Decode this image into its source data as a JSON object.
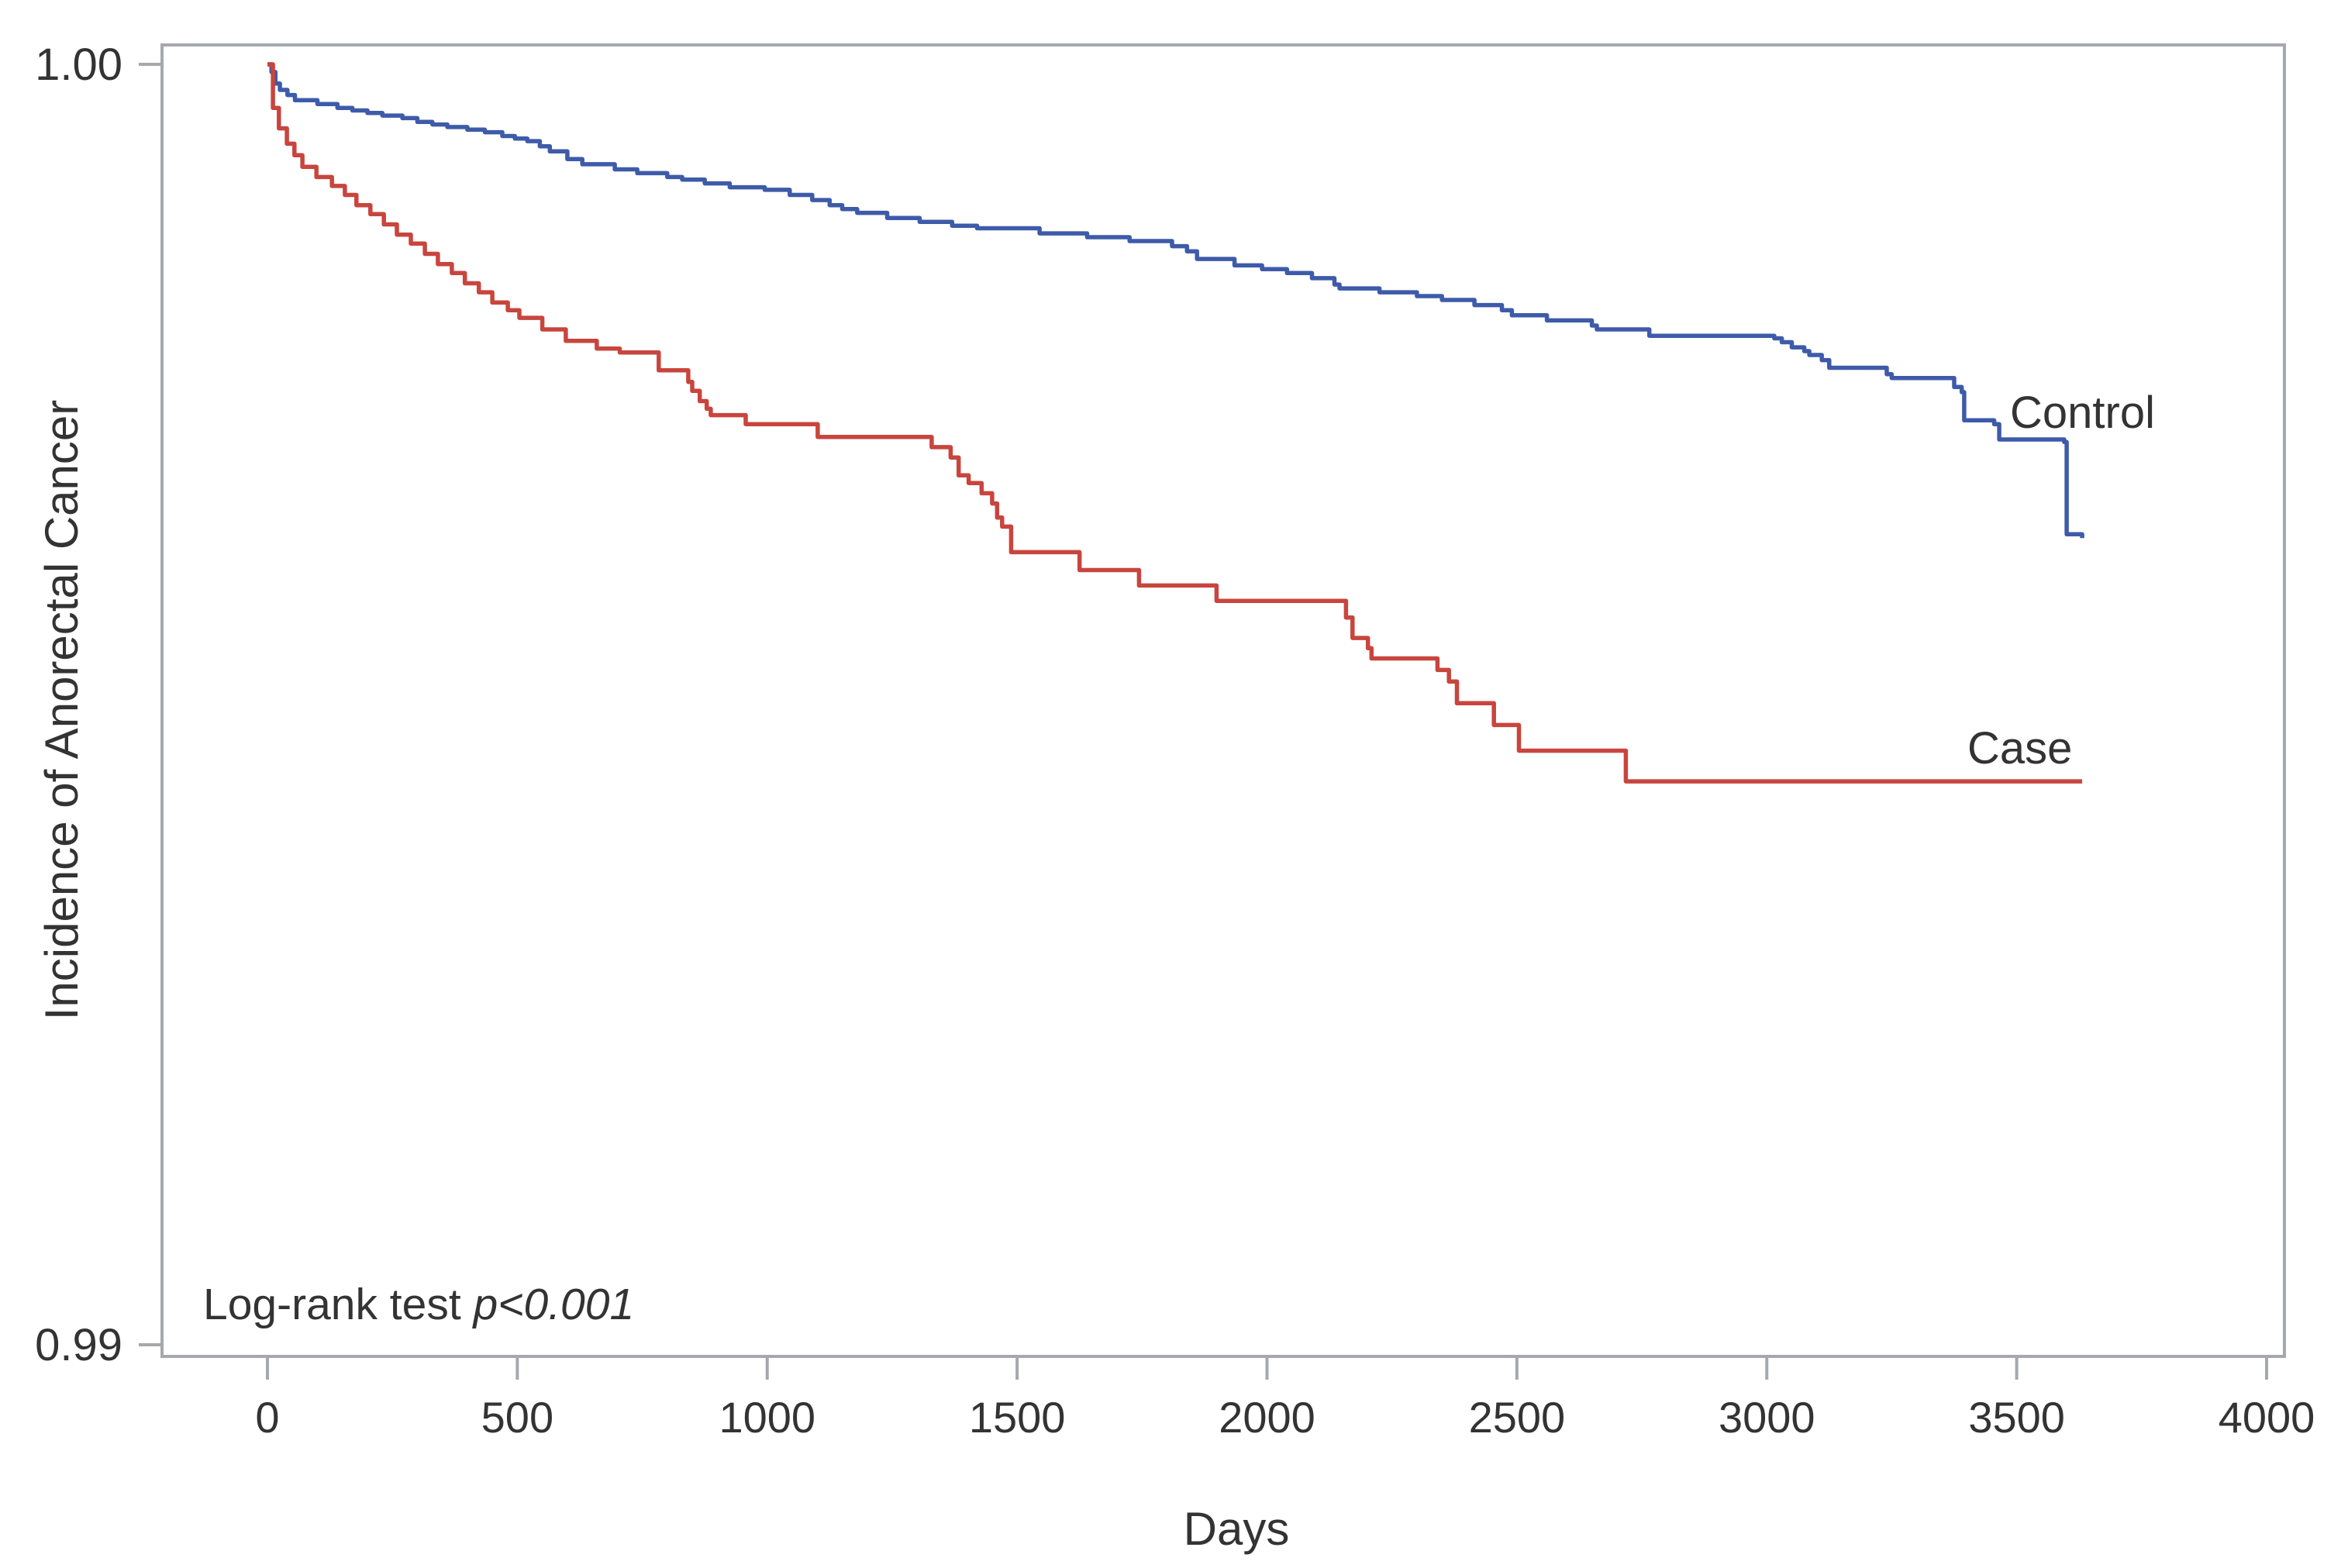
{
  "figure": {
    "background_color": "#ffffff",
    "frame_color": "#a5a8ac",
    "text_color": "#333333"
  },
  "chart_data": {
    "type": "line",
    "subtype": "kaplan-meier-step",
    "title": "",
    "xlabel": "Days",
    "ylabel": "Incidence of Anorectal Cancer",
    "xlim": [
      0,
      4000
    ],
    "ylim": [
      0.99,
      1.0
    ],
    "grid": false,
    "legend_position": "curve-end-labels",
    "x_ticks": [
      {
        "value": 0,
        "label": "0"
      },
      {
        "value": 500,
        "label": "500"
      },
      {
        "value": 1000,
        "label": "1000"
      },
      {
        "value": 1500,
        "label": "1500"
      },
      {
        "value": 2000,
        "label": "2000"
      },
      {
        "value": 2500,
        "label": "2500"
      },
      {
        "value": 3000,
        "label": "3000"
      },
      {
        "value": 3500,
        "label": "3500"
      },
      {
        "value": 4000,
        "label": "4000"
      }
    ],
    "y_ticks": [
      {
        "value": 1.0,
        "label": "1.00"
      },
      {
        "value": 0.99,
        "label": "0.99"
      }
    ],
    "annotation": {
      "prefix": "Log-rank test ",
      "p_value": "p<0.001"
    },
    "series": [
      {
        "name": "Control",
        "label_text": "Control",
        "color": "#3e5ba9",
        "points": [
          [
            0,
            1.0
          ],
          [
            8,
            0.99994
          ],
          [
            16,
            0.99985
          ],
          [
            25,
            0.9998
          ],
          [
            40,
            0.99976
          ],
          [
            55,
            0.99972
          ],
          [
            100,
            0.99969
          ],
          [
            140,
            0.99966
          ],
          [
            170,
            0.99964
          ],
          [
            200,
            0.99962
          ],
          [
            230,
            0.9996
          ],
          [
            270,
            0.99958
          ],
          [
            300,
            0.99955
          ],
          [
            330,
            0.99953
          ],
          [
            360,
            0.99951
          ],
          [
            400,
            0.99949
          ],
          [
            435,
            0.99947
          ],
          [
            470,
            0.99944
          ],
          [
            495,
            0.99942
          ],
          [
            520,
            0.9994
          ],
          [
            545,
            0.99936
          ],
          [
            565,
            0.99932
          ],
          [
            600,
            0.99926
          ],
          [
            630,
            0.99922
          ],
          [
            695,
            0.99918
          ],
          [
            740,
            0.99915
          ],
          [
            800,
            0.99912
          ],
          [
            830,
            0.9991
          ],
          [
            875,
            0.99907
          ],
          [
            925,
            0.99904
          ],
          [
            995,
            0.99902
          ],
          [
            1045,
            0.99898
          ],
          [
            1090,
            0.99894
          ],
          [
            1125,
            0.9989
          ],
          [
            1150,
            0.99887
          ],
          [
            1180,
            0.99884
          ],
          [
            1240,
            0.9988
          ],
          [
            1305,
            0.99877
          ],
          [
            1370,
            0.99874
          ],
          [
            1420,
            0.99872
          ],
          [
            1545,
            0.99868
          ],
          [
            1640,
            0.99865
          ],
          [
            1725,
            0.99862
          ],
          [
            1810,
            0.99858
          ],
          [
            1840,
            0.99854
          ],
          [
            1860,
            0.99848
          ],
          [
            1935,
            0.99843
          ],
          [
            1990,
            0.9984
          ],
          [
            2040,
            0.99837
          ],
          [
            2090,
            0.99833
          ],
          [
            2135,
            0.99828
          ],
          [
            2145,
            0.99825
          ],
          [
            2225,
            0.99822
          ],
          [
            2300,
            0.99819
          ],
          [
            2350,
            0.99816
          ],
          [
            2415,
            0.99812
          ],
          [
            2470,
            0.99808
          ],
          [
            2490,
            0.99804
          ],
          [
            2560,
            0.998
          ],
          [
            2650,
            0.99796
          ],
          [
            2660,
            0.99793
          ],
          [
            2765,
            0.99788
          ],
          [
            3015,
            0.99786
          ],
          [
            3030,
            0.99783
          ],
          [
            3050,
            0.99779
          ],
          [
            3075,
            0.99776
          ],
          [
            3085,
            0.99773
          ],
          [
            3110,
            0.99769
          ],
          [
            3125,
            0.99763
          ],
          [
            3240,
            0.99758
          ],
          [
            3250,
            0.99755
          ],
          [
            3375,
            0.99748
          ],
          [
            3390,
            0.99744
          ],
          [
            3395,
            0.99722
          ],
          [
            3455,
            0.99719
          ],
          [
            3465,
            0.99707
          ],
          [
            3595,
            0.99705
          ],
          [
            3600,
            0.99633
          ],
          [
            3631,
            0.9963
          ]
        ]
      },
      {
        "name": "Case",
        "label_text": "Case",
        "color": "#c8453e",
        "points": [
          [
            0,
            1.0
          ],
          [
            11,
            0.99966
          ],
          [
            23,
            0.9995
          ],
          [
            39,
            0.99938
          ],
          [
            54,
            0.99929
          ],
          [
            70,
            0.9992
          ],
          [
            98,
            0.99912
          ],
          [
            129,
            0.99905
          ],
          [
            155,
            0.99898
          ],
          [
            178,
            0.9989
          ],
          [
            206,
            0.99883
          ],
          [
            233,
            0.99875
          ],
          [
            259,
            0.99867
          ],
          [
            287,
            0.9986
          ],
          [
            315,
            0.99852
          ],
          [
            341,
            0.99844
          ],
          [
            369,
            0.99837
          ],
          [
            395,
            0.99829
          ],
          [
            423,
            0.99822
          ],
          [
            450,
            0.99814
          ],
          [
            481,
            0.99808
          ],
          [
            504,
            0.99802
          ],
          [
            550,
            0.99793
          ],
          [
            597,
            0.99784
          ],
          [
            659,
            0.99778
          ],
          [
            705,
            0.99775
          ],
          [
            783,
            0.99761
          ],
          [
            842,
            0.99752
          ],
          [
            850,
            0.99745
          ],
          [
            865,
            0.99737
          ],
          [
            879,
            0.99731
          ],
          [
            887,
            0.99726
          ],
          [
            957,
            0.99719
          ],
          [
            1101,
            0.99709
          ],
          [
            1329,
            0.99701
          ],
          [
            1367,
            0.99693
          ],
          [
            1383,
            0.99679
          ],
          [
            1403,
            0.99673
          ],
          [
            1429,
            0.99665
          ],
          [
            1450,
            0.99657
          ],
          [
            1460,
            0.99646
          ],
          [
            1470,
            0.99639
          ],
          [
            1488,
            0.99619
          ],
          [
            1625,
            0.99605
          ],
          [
            1744,
            0.99593
          ],
          [
            1899,
            0.99581
          ],
          [
            2158,
            0.99568
          ],
          [
            2171,
            0.99552
          ],
          [
            2202,
            0.99544
          ],
          [
            2209,
            0.99536
          ],
          [
            2341,
            0.99527
          ],
          [
            2364,
            0.99518
          ],
          [
            2380,
            0.99501
          ],
          [
            2454,
            0.99484
          ],
          [
            2504,
            0.99464
          ],
          [
            2718,
            0.9944
          ],
          [
            3631,
            0.9944
          ]
        ]
      }
    ]
  }
}
